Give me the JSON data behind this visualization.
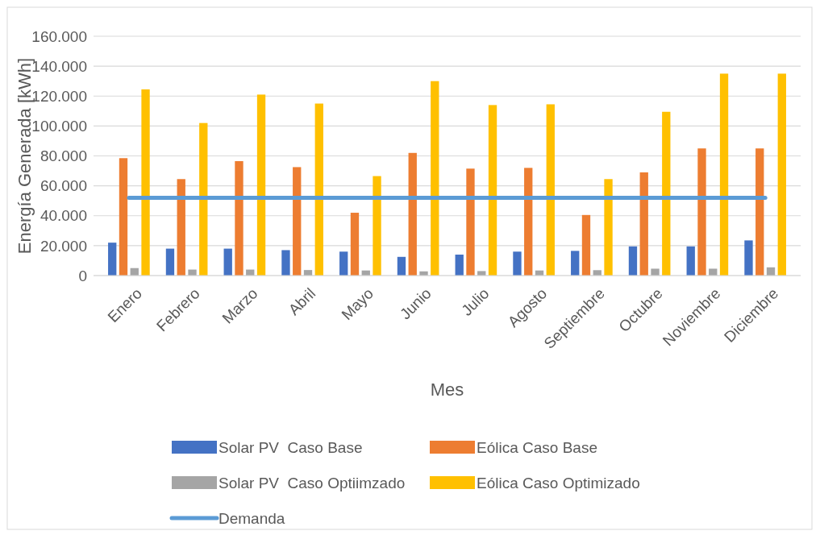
{
  "chart_data": {
    "type": "bar",
    "xlabel": "Mes",
    "ylabel": "Energía Generada [kWh]",
    "categories": [
      "Enero",
      "Febrero",
      "Marzo",
      "Abril",
      "Mayo",
      "Junio",
      "Julio",
      "Agosto",
      "Septiembre",
      "Octubre",
      "Noviembre",
      "Diciembre"
    ],
    "series": [
      {
        "name": "Solar PV  Caso Base",
        "color": "#4472c4",
        "values": [
          22000,
          18000,
          18000,
          17000,
          16000,
          12500,
          14000,
          16000,
          16500,
          19500,
          19500,
          23500
        ]
      },
      {
        "name": "Eólica Caso Base",
        "color": "#ed7d31",
        "values": [
          78500,
          64500,
          76500,
          72500,
          42000,
          82000,
          71500,
          72000,
          40500,
          69000,
          85000,
          85000
        ]
      },
      {
        "name": "Solar PV  Caso Optiimzado",
        "color": "#a5a5a5",
        "values": [
          5000,
          4000,
          4000,
          3700,
          3400,
          2800,
          3000,
          3400,
          3600,
          4600,
          4600,
          5500
        ]
      },
      {
        "name": "Eólica Caso Optimizado",
        "color": "#ffc000",
        "values": [
          124500,
          102000,
          121000,
          115000,
          66500,
          130000,
          114000,
          114500,
          64500,
          109500,
          135000,
          135000
        ]
      },
      {
        "name": "Demanda",
        "color": "#5b9bd5",
        "type": "line",
        "values": [
          52000,
          52000,
          52000,
          52000,
          52000,
          52000,
          52000,
          52000,
          52000,
          52000,
          52000,
          52000
        ]
      }
    ],
    "ylim": [
      0,
      160000
    ],
    "yticks": [
      {
        "value": 0,
        "label": "0"
      },
      {
        "value": 20000,
        "label": "20.000"
      },
      {
        "value": 40000,
        "label": "40.000"
      },
      {
        "value": 60000,
        "label": "60.000"
      },
      {
        "value": 80000,
        "label": "80.000"
      },
      {
        "value": 100000,
        "label": "100.000"
      },
      {
        "value": 120000,
        "label": "120.000"
      },
      {
        "value": 140000,
        "label": "140.000"
      },
      {
        "value": 160000,
        "label": "160.000"
      }
    ],
    "grid": "y",
    "legend": "bottom"
  }
}
